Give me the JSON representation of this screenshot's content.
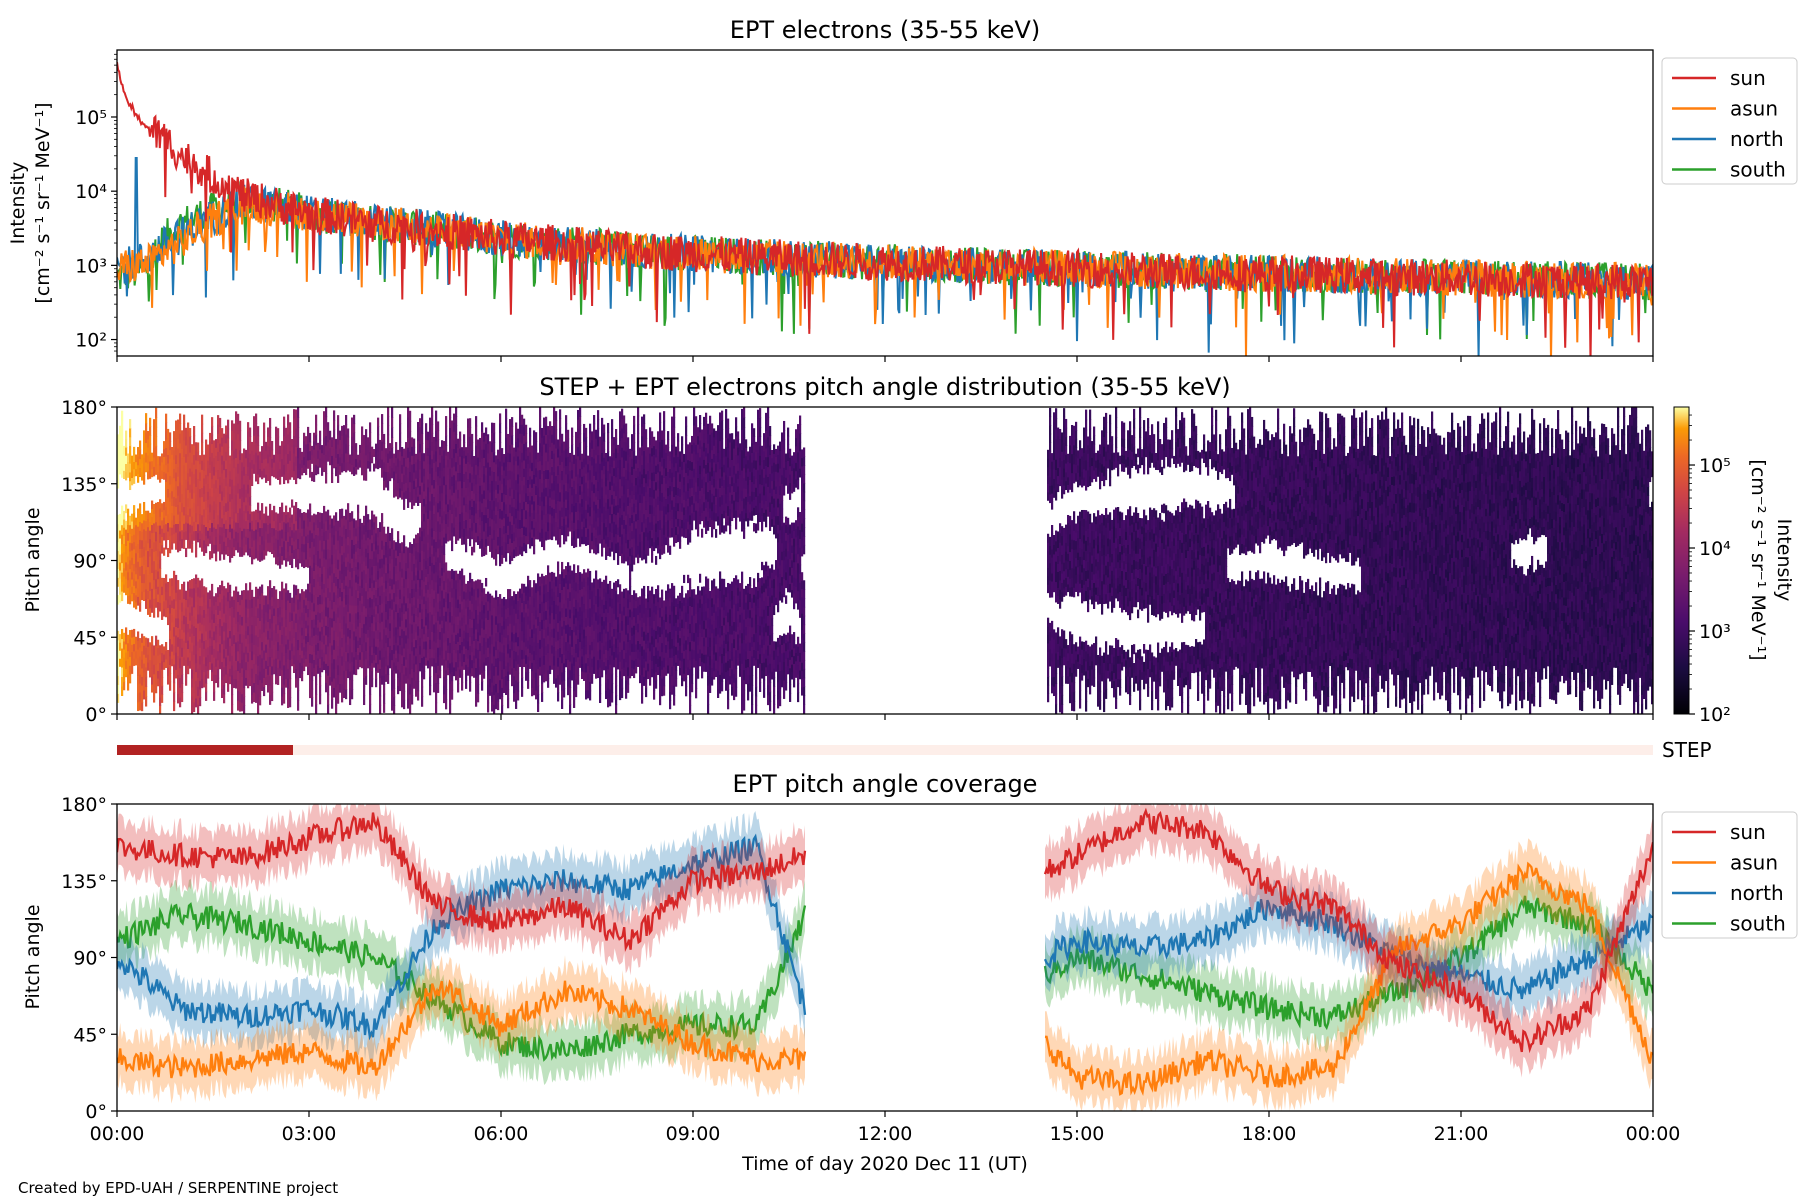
{
  "footer": {
    "credit": "Created by EPD-UAH / SERPENTINE project"
  },
  "colors": {
    "sun": "#d62728",
    "asun": "#ff7f0e",
    "north": "#1f77b4",
    "south": "#2ca02c",
    "step_bar": "#b22222",
    "step_empty": "#fdeee9"
  },
  "chart_data": [
    {
      "type": "line",
      "title": "EPT electrons (35-55 keV)",
      "ylabel": "Intensity",
      "ylabel_units": "[cm⁻² s⁻¹ sr⁻¹ MeV⁻¹]",
      "yscale": "log",
      "ylim": [
        60,
        800000
      ],
      "y_ticks": [
        "10²",
        "10³",
        "10⁴",
        "10⁵"
      ],
      "x_hours": [
        0,
        0.05,
        0.1,
        0.3,
        0.5,
        1,
        1.5,
        2,
        2.5,
        3,
        4,
        5,
        6,
        8,
        10,
        12,
        14,
        16,
        18,
        20,
        22,
        24
      ],
      "series": [
        {
          "name": "sun",
          "values": [
            500000,
            350000,
            200000,
            100000,
            70000,
            30000,
            15000,
            8500,
            6500,
            5000,
            3700,
            3000,
            2300,
            1600,
            1300,
            1100,
            950,
            850,
            780,
            700,
            650,
            600
          ]
        },
        {
          "name": "asun",
          "values": [
            900,
            900,
            950,
            1000,
            1100,
            2000,
            4000,
            6500,
            6000,
            5000,
            3800,
            3000,
            2300,
            1600,
            1300,
            1100,
            950,
            850,
            780,
            700,
            650,
            600
          ]
        },
        {
          "name": "north",
          "values": [
            1000,
            1000,
            1000,
            1100,
            1300,
            2500,
            4500,
            7000,
            6200,
            5000,
            3800,
            3000,
            2300,
            1600,
            1300,
            1100,
            950,
            850,
            780,
            700,
            650,
            600
          ]
        },
        {
          "name": "south",
          "values": [
            700,
            700,
            750,
            800,
            1000,
            3500,
            5500,
            7500,
            6500,
            5000,
            3800,
            3000,
            2300,
            1600,
            1300,
            1100,
            950,
            850,
            780,
            700,
            650,
            600
          ]
        }
      ],
      "legend": "outside-right"
    },
    {
      "type": "heatmap",
      "title": "STEP + EPT electrons pitch angle distribution (35-55 keV)",
      "ylabel": "Pitch angle",
      "ylim": [
        0,
        180
      ],
      "y_ticks": [
        "0°",
        "45°",
        "90°",
        "135°",
        "180°"
      ],
      "colorbar": {
        "label": "Intensity",
        "units": "[cm⁻² s⁻¹ sr⁻¹ MeV⁻¹]",
        "scale": "log",
        "range": [
          100,
          500000
        ],
        "ticks": [
          "10²",
          "10³",
          "10⁴",
          "10⁵"
        ]
      },
      "data_gap_hours": [
        10.75,
        14.5
      ],
      "step_bar": {
        "label": "STEP",
        "coverage_hours": [
          0,
          2.75
        ]
      }
    },
    {
      "type": "area",
      "title": "EPT pitch angle coverage",
      "ylabel": "Pitch angle",
      "xlabel": "Time of day 2020 Dec 11 (UT)",
      "ylim": [
        0,
        180
      ],
      "y_ticks": [
        "0°",
        "45°",
        "90°",
        "135°",
        "180°"
      ],
      "x_ticks": [
        "00:00",
        "03:00",
        "06:00",
        "09:00",
        "12:00",
        "15:00",
        "18:00",
        "21:00",
        "00:00"
      ],
      "data_gap_hours": [
        10.75,
        14.5
      ],
      "x_hours": [
        0,
        1,
        2,
        3,
        4,
        5,
        6,
        7,
        8,
        9,
        10,
        10.75,
        14.5,
        15,
        16,
        17,
        18,
        19,
        20,
        21,
        22,
        23,
        24
      ],
      "series": [
        {
          "name": "sun",
          "values": [
            155,
            150,
            148,
            160,
            170,
            120,
            110,
            120,
            100,
            135,
            140,
            150,
            140,
            150,
            170,
            165,
            130,
            120,
            85,
            70,
            40,
            60,
            155
          ]
        },
        {
          "name": "asun",
          "values": [
            30,
            25,
            30,
            35,
            25,
            75,
            50,
            70,
            60,
            40,
            30,
            30,
            40,
            20,
            15,
            30,
            20,
            25,
            95,
            110,
            140,
            120,
            30
          ]
        },
        {
          "name": "north",
          "values": [
            90,
            60,
            55,
            60,
            50,
            110,
            130,
            135,
            130,
            145,
            155,
            60,
            90,
            100,
            95,
            100,
            120,
            110,
            90,
            80,
            70,
            90,
            110
          ]
        },
        {
          "name": "south",
          "values": [
            100,
            115,
            110,
            100,
            90,
            65,
            40,
            35,
            45,
            50,
            50,
            115,
            80,
            90,
            80,
            70,
            60,
            55,
            70,
            90,
            120,
            110,
            70
          ]
        }
      ],
      "band_halfwidth_deg": 15,
      "legend": "outside-right"
    }
  ]
}
